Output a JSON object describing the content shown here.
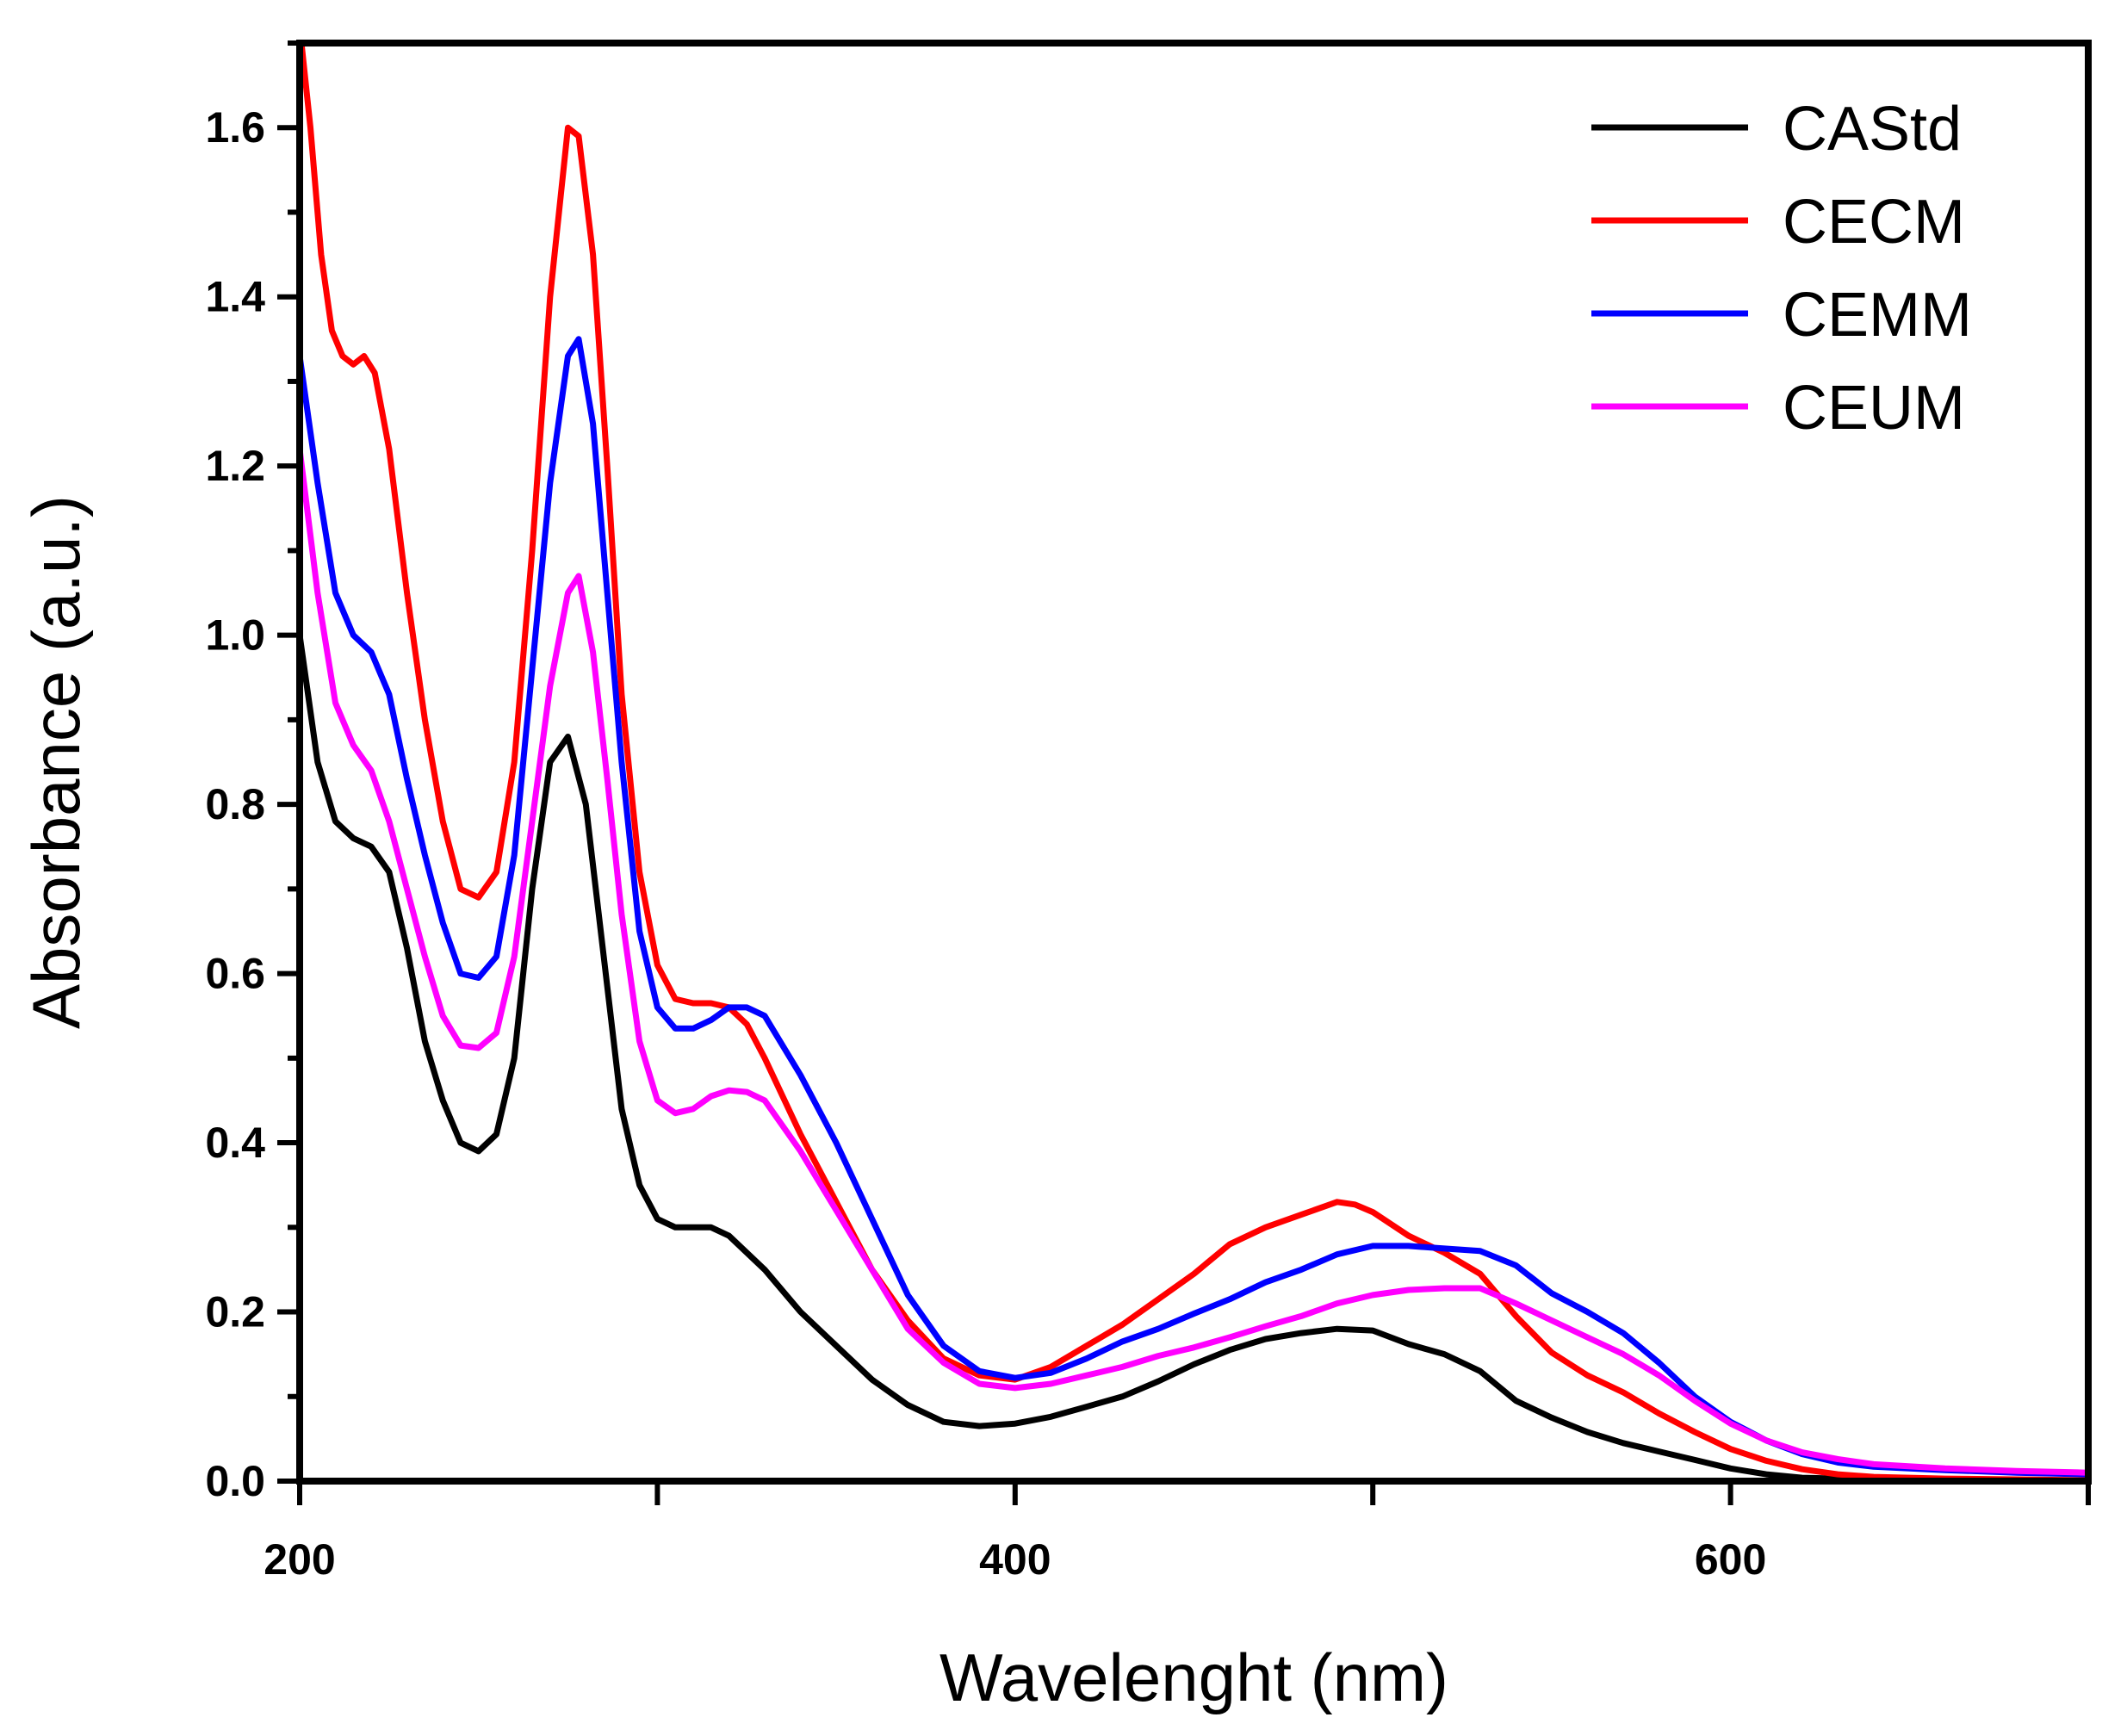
{
  "chart_data": {
    "type": "line",
    "xlabel": "Wavelenght (nm)",
    "ylabel": "Absorbance (a.u.)",
    "xlim": [
      200,
      700
    ],
    "ylim": [
      0,
      1.7
    ],
    "x_ticks": [
      200,
      400,
      600
    ],
    "y_ticks": [
      0.0,
      0.2,
      0.4,
      0.6,
      0.8,
      1.0,
      1.2,
      1.4,
      1.6
    ],
    "x_tick_labels": [
      "200",
      "400",
      "600"
    ],
    "y_tick_labels": [
      "0.0",
      "0.2",
      "0.4",
      "0.6",
      "0.8",
      "1.0",
      "1.2",
      "1.4",
      "1.6"
    ],
    "grid": false,
    "legend_position": "top-right",
    "series": [
      {
        "name": "CAStd",
        "color": "#000000",
        "points": [
          [
            200,
            1.0
          ],
          [
            205,
            0.85
          ],
          [
            210,
            0.78
          ],
          [
            215,
            0.76
          ],
          [
            220,
            0.75
          ],
          [
            225,
            0.72
          ],
          [
            230,
            0.63
          ],
          [
            235,
            0.52
          ],
          [
            240,
            0.45
          ],
          [
            245,
            0.4
          ],
          [
            250,
            0.39
          ],
          [
            255,
            0.41
          ],
          [
            260,
            0.5
          ],
          [
            265,
            0.7
          ],
          [
            270,
            0.85
          ],
          [
            275,
            0.88
          ],
          [
            280,
            0.8
          ],
          [
            285,
            0.62
          ],
          [
            290,
            0.44
          ],
          [
            295,
            0.35
          ],
          [
            300,
            0.31
          ],
          [
            305,
            0.3
          ],
          [
            310,
            0.3
          ],
          [
            315,
            0.3
          ],
          [
            320,
            0.29
          ],
          [
            330,
            0.25
          ],
          [
            340,
            0.2
          ],
          [
            350,
            0.16
          ],
          [
            360,
            0.12
          ],
          [
            370,
            0.09
          ],
          [
            380,
            0.07
          ],
          [
            390,
            0.065
          ],
          [
            400,
            0.068
          ],
          [
            410,
            0.076
          ],
          [
            420,
            0.088
          ],
          [
            430,
            0.1
          ],
          [
            440,
            0.118
          ],
          [
            450,
            0.138
          ],
          [
            460,
            0.155
          ],
          [
            470,
            0.168
          ],
          [
            480,
            0.175
          ],
          [
            490,
            0.18
          ],
          [
            500,
            0.178
          ],
          [
            510,
            0.162
          ],
          [
            520,
            0.15
          ],
          [
            530,
            0.13
          ],
          [
            540,
            0.095
          ],
          [
            550,
            0.075
          ],
          [
            560,
            0.058
          ],
          [
            570,
            0.045
          ],
          [
            580,
            0.035
          ],
          [
            590,
            0.025
          ],
          [
            600,
            0.015
          ],
          [
            610,
            0.008
          ],
          [
            620,
            0.004
          ],
          [
            640,
            0.002
          ],
          [
            660,
            0.001
          ],
          [
            700,
            0.001
          ]
        ]
      },
      {
        "name": "CECM",
        "color": "#ff0000",
        "points": [
          [
            200,
            1.72
          ],
          [
            203,
            1.6
          ],
          [
            206,
            1.45
          ],
          [
            209,
            1.36
          ],
          [
            212,
            1.33
          ],
          [
            215,
            1.32
          ],
          [
            218,
            1.33
          ],
          [
            221,
            1.31
          ],
          [
            225,
            1.22
          ],
          [
            230,
            1.05
          ],
          [
            235,
            0.9
          ],
          [
            240,
            0.78
          ],
          [
            245,
            0.7
          ],
          [
            250,
            0.69
          ],
          [
            255,
            0.72
          ],
          [
            260,
            0.85
          ],
          [
            265,
            1.1
          ],
          [
            270,
            1.4
          ],
          [
            275,
            1.6
          ],
          [
            278,
            1.59
          ],
          [
            282,
            1.45
          ],
          [
            286,
            1.2
          ],
          [
            290,
            0.93
          ],
          [
            295,
            0.72
          ],
          [
            300,
            0.61
          ],
          [
            305,
            0.57
          ],
          [
            310,
            0.565
          ],
          [
            315,
            0.565
          ],
          [
            320,
            0.56
          ],
          [
            325,
            0.54
          ],
          [
            330,
            0.5
          ],
          [
            340,
            0.41
          ],
          [
            350,
            0.33
          ],
          [
            360,
            0.25
          ],
          [
            370,
            0.19
          ],
          [
            380,
            0.145
          ],
          [
            390,
            0.125
          ],
          [
            400,
            0.12
          ],
          [
            410,
            0.135
          ],
          [
            420,
            0.16
          ],
          [
            430,
            0.185
          ],
          [
            440,
            0.215
          ],
          [
            450,
            0.245
          ],
          [
            460,
            0.28
          ],
          [
            470,
            0.3
          ],
          [
            480,
            0.315
          ],
          [
            490,
            0.33
          ],
          [
            495,
            0.327
          ],
          [
            500,
            0.318
          ],
          [
            510,
            0.29
          ],
          [
            520,
            0.27
          ],
          [
            530,
            0.245
          ],
          [
            540,
            0.195
          ],
          [
            550,
            0.152
          ],
          [
            560,
            0.125
          ],
          [
            570,
            0.105
          ],
          [
            580,
            0.08
          ],
          [
            590,
            0.058
          ],
          [
            600,
            0.038
          ],
          [
            610,
            0.024
          ],
          [
            620,
            0.014
          ],
          [
            630,
            0.008
          ],
          [
            640,
            0.005
          ],
          [
            660,
            0.003
          ],
          [
            700,
            0.001
          ]
        ]
      },
      {
        "name": "CEMM",
        "color": "#0000ff",
        "points": [
          [
            200,
            1.33
          ],
          [
            205,
            1.18
          ],
          [
            210,
            1.05
          ],
          [
            215,
            1.0
          ],
          [
            220,
            0.98
          ],
          [
            225,
            0.93
          ],
          [
            230,
            0.83
          ],
          [
            235,
            0.74
          ],
          [
            240,
            0.66
          ],
          [
            245,
            0.6
          ],
          [
            250,
            0.595
          ],
          [
            255,
            0.62
          ],
          [
            260,
            0.74
          ],
          [
            265,
            0.96
          ],
          [
            270,
            1.18
          ],
          [
            275,
            1.33
          ],
          [
            278,
            1.35
          ],
          [
            282,
            1.25
          ],
          [
            286,
            1.05
          ],
          [
            290,
            0.85
          ],
          [
            295,
            0.65
          ],
          [
            300,
            0.56
          ],
          [
            305,
            0.535
          ],
          [
            310,
            0.535
          ],
          [
            315,
            0.545
          ],
          [
            320,
            0.56
          ],
          [
            325,
            0.56
          ],
          [
            330,
            0.55
          ],
          [
            340,
            0.48
          ],
          [
            350,
            0.4
          ],
          [
            360,
            0.31
          ],
          [
            370,
            0.22
          ],
          [
            380,
            0.16
          ],
          [
            390,
            0.13
          ],
          [
            400,
            0.122
          ],
          [
            410,
            0.128
          ],
          [
            420,
            0.145
          ],
          [
            430,
            0.165
          ],
          [
            440,
            0.18
          ],
          [
            450,
            0.198
          ],
          [
            460,
            0.215
          ],
          [
            470,
            0.235
          ],
          [
            480,
            0.25
          ],
          [
            490,
            0.268
          ],
          [
            500,
            0.278
          ],
          [
            510,
            0.278
          ],
          [
            520,
            0.275
          ],
          [
            530,
            0.272
          ],
          [
            540,
            0.255
          ],
          [
            550,
            0.222
          ],
          [
            560,
            0.2
          ],
          [
            570,
            0.175
          ],
          [
            580,
            0.14
          ],
          [
            590,
            0.1
          ],
          [
            600,
            0.07
          ],
          [
            610,
            0.048
          ],
          [
            620,
            0.032
          ],
          [
            630,
            0.022
          ],
          [
            640,
            0.017
          ],
          [
            660,
            0.013
          ],
          [
            680,
            0.01
          ],
          [
            700,
            0.008
          ]
        ]
      },
      {
        "name": "CEUM",
        "color": "#ff00ff",
        "points": [
          [
            200,
            1.22
          ],
          [
            205,
            1.05
          ],
          [
            210,
            0.92
          ],
          [
            215,
            0.87
          ],
          [
            220,
            0.84
          ],
          [
            225,
            0.78
          ],
          [
            230,
            0.7
          ],
          [
            235,
            0.62
          ],
          [
            240,
            0.55
          ],
          [
            245,
            0.515
          ],
          [
            250,
            0.512
          ],
          [
            255,
            0.53
          ],
          [
            260,
            0.62
          ],
          [
            265,
            0.78
          ],
          [
            270,
            0.94
          ],
          [
            275,
            1.05
          ],
          [
            278,
            1.07
          ],
          [
            282,
            0.98
          ],
          [
            286,
            0.83
          ],
          [
            290,
            0.67
          ],
          [
            295,
            0.52
          ],
          [
            300,
            0.45
          ],
          [
            305,
            0.435
          ],
          [
            310,
            0.44
          ],
          [
            315,
            0.455
          ],
          [
            320,
            0.462
          ],
          [
            325,
            0.46
          ],
          [
            330,
            0.45
          ],
          [
            340,
            0.39
          ],
          [
            350,
            0.32
          ],
          [
            360,
            0.25
          ],
          [
            370,
            0.18
          ],
          [
            380,
            0.14
          ],
          [
            390,
            0.115
          ],
          [
            400,
            0.11
          ],
          [
            410,
            0.115
          ],
          [
            420,
            0.125
          ],
          [
            430,
            0.135
          ],
          [
            440,
            0.148
          ],
          [
            450,
            0.158
          ],
          [
            460,
            0.17
          ],
          [
            470,
            0.183
          ],
          [
            480,
            0.195
          ],
          [
            490,
            0.21
          ],
          [
            500,
            0.22
          ],
          [
            510,
            0.226
          ],
          [
            520,
            0.228
          ],
          [
            530,
            0.228
          ],
          [
            540,
            0.21
          ],
          [
            550,
            0.19
          ],
          [
            560,
            0.17
          ],
          [
            570,
            0.15
          ],
          [
            580,
            0.125
          ],
          [
            590,
            0.095
          ],
          [
            600,
            0.068
          ],
          [
            610,
            0.048
          ],
          [
            620,
            0.034
          ],
          [
            630,
            0.026
          ],
          [
            640,
            0.02
          ],
          [
            660,
            0.015
          ],
          [
            680,
            0.012
          ],
          [
            700,
            0.01
          ]
        ]
      }
    ]
  }
}
